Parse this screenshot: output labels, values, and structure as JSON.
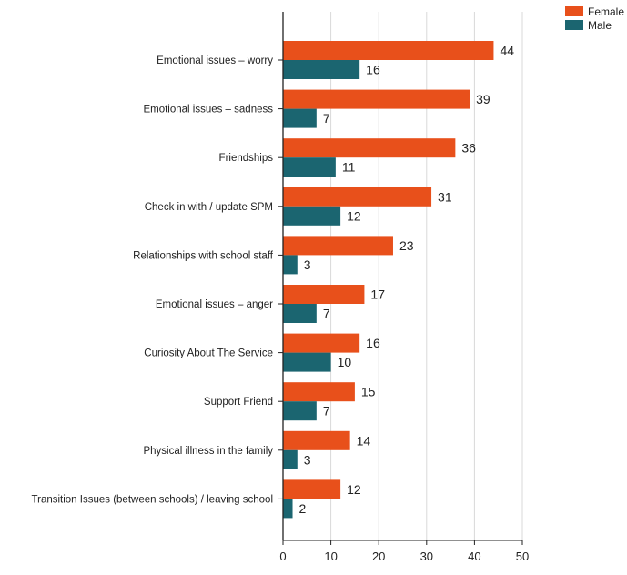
{
  "chart_data": {
    "type": "bar",
    "orientation": "horizontal",
    "categories": [
      "Emotional issues – worry",
      "Emotional issues – sadness",
      "Friendships",
      "Check in with / update SPM",
      "Relationships with school staff",
      "Emotional issues – anger",
      "Curiosity About The Service",
      "Support Friend",
      "Physical illness in the family",
      "Transition Issues (between schools) / leaving school"
    ],
    "series": [
      {
        "name": "Female",
        "color": "#E8501B",
        "values": [
          44,
          39,
          36,
          31,
          23,
          17,
          16,
          15,
          14,
          12
        ]
      },
      {
        "name": "Male",
        "color": "#1B6570",
        "values": [
          16,
          7,
          11,
          12,
          3,
          7,
          10,
          7,
          3,
          2
        ]
      }
    ],
    "xlim": [
      0,
      50
    ],
    "xticks": [
      0,
      10,
      20,
      30,
      40,
      50
    ],
    "grid": true,
    "legend_position": "top-right",
    "data_labels": true
  }
}
